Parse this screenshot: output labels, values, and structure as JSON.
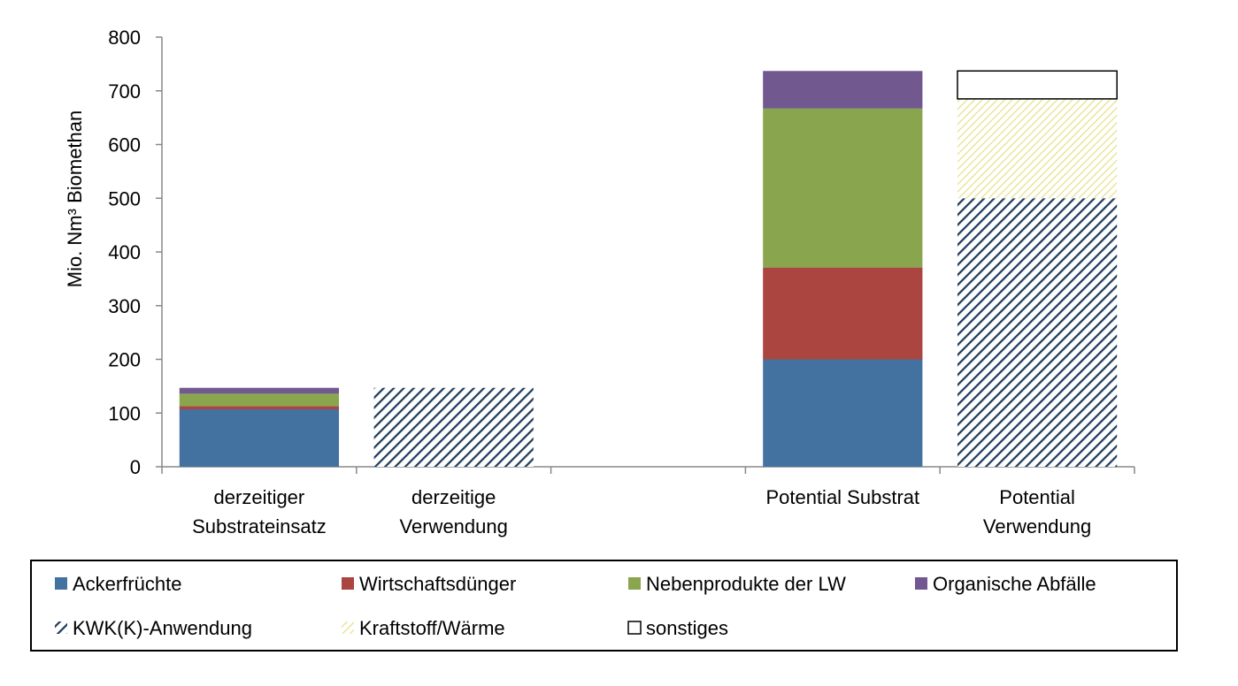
{
  "colors": {
    "ackerfruechte": "#4472a0",
    "wirtschaftsduenger": "#ab4540",
    "nebenprodukte": "#89a54e",
    "abfaelle": "#71588f",
    "kwk": "#1f3d5c",
    "kraftstoff": "#e8e08a",
    "sonstiges": "#ffffff"
  },
  "chart_data": {
    "type": "bar",
    "stacked": true,
    "ylabel": "Mio. Nm³ Biomethan",
    "ylim": [
      0,
      800
    ],
    "yticks": [
      0,
      100,
      200,
      300,
      400,
      500,
      600,
      700,
      800
    ],
    "categories": [
      [
        "derzeitiger",
        "Substrateinsatz"
      ],
      [
        "derzeitige",
        "Verwendung"
      ],
      [
        ""
      ],
      [
        "Potential Substrat"
      ],
      [
        "Potential",
        "Verwendung"
      ]
    ],
    "series": [
      {
        "name": "Ackerfrüchte",
        "key": "ackerfruechte",
        "pattern": "solid",
        "values": [
          107,
          0,
          0,
          200,
          0
        ]
      },
      {
        "name": "Wirtschaftsdünger",
        "key": "wirtschaftsduenger",
        "pattern": "solid",
        "values": [
          6,
          0,
          0,
          171,
          0
        ]
      },
      {
        "name": "Nebenprodukte der LW",
        "key": "nebenprodukte",
        "pattern": "solid",
        "values": [
          23,
          0,
          0,
          296,
          0
        ]
      },
      {
        "name": "Organische Abfälle",
        "key": "abfaelle",
        "pattern": "solid",
        "values": [
          11,
          0,
          0,
          70,
          0
        ]
      },
      {
        "name": "KWK(K)-Anwendung",
        "key": "kwk",
        "pattern": "hatch-dark",
        "values": [
          0,
          147,
          0,
          0,
          500
        ]
      },
      {
        "name": "Kraftstoff/Wärme",
        "key": "kraftstoff",
        "pattern": "hatch-light",
        "values": [
          0,
          0,
          0,
          0,
          185
        ]
      },
      {
        "name": "sonstiges",
        "key": "sonstiges",
        "pattern": "outline",
        "values": [
          0,
          0,
          0,
          0,
          52
        ]
      }
    ],
    "grid": false,
    "legend_position": "bottom"
  }
}
